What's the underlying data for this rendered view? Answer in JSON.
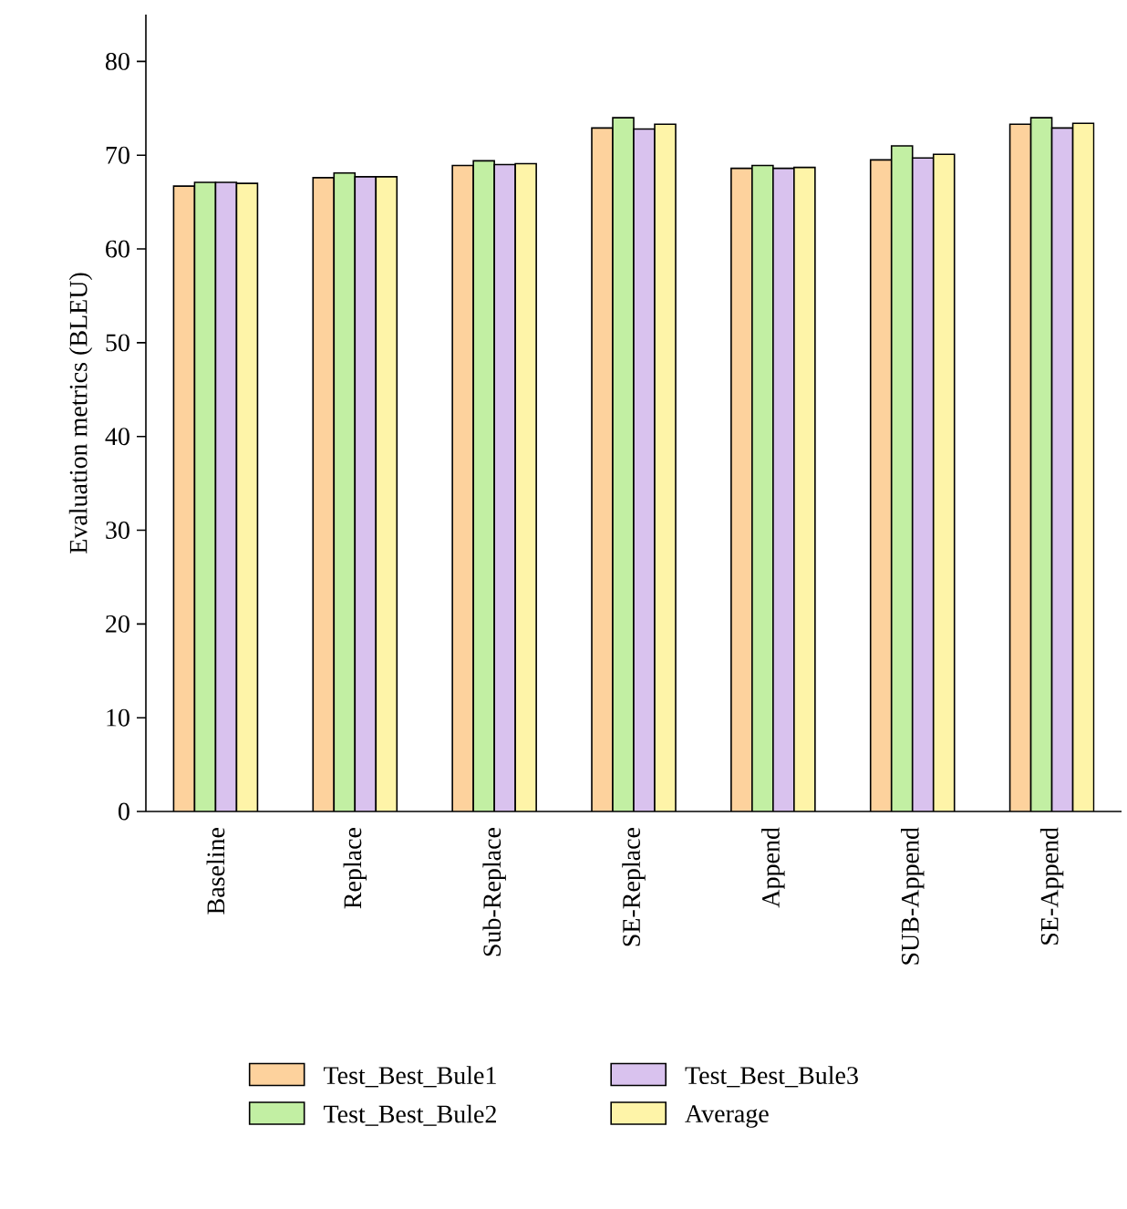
{
  "chart_data": {
    "type": "bar",
    "ylabel": "Evaluation metrics (BLEU)",
    "categories": [
      "Baseline",
      "Replace",
      "Sub-Replace",
      "SE-Replace",
      "Append",
      "SUB-Append",
      "SE-Append"
    ],
    "series": [
      {
        "name": "Test_Best_Bule1",
        "color": "#fdd29d",
        "values": [
          66.7,
          67.6,
          68.9,
          72.9,
          68.6,
          69.5,
          73.3
        ]
      },
      {
        "name": "Test_Best_Bule2",
        "color": "#c2efa3",
        "values": [
          67.1,
          68.1,
          69.4,
          74.0,
          68.9,
          71.0,
          74.0
        ]
      },
      {
        "name": "Test_Best_Bule3",
        "color": "#d9c2ee",
        "values": [
          67.1,
          67.7,
          69.0,
          72.8,
          68.6,
          69.7,
          72.9
        ]
      },
      {
        "name": "Average",
        "color": "#fef4a8",
        "values": [
          67.0,
          67.7,
          69.1,
          73.3,
          68.7,
          70.1,
          73.4
        ]
      }
    ],
    "ylim": [
      0,
      85
    ],
    "yticks": [
      0,
      10,
      20,
      30,
      40,
      50,
      60,
      70,
      80
    ],
    "grid": false,
    "legend": "bottom"
  }
}
